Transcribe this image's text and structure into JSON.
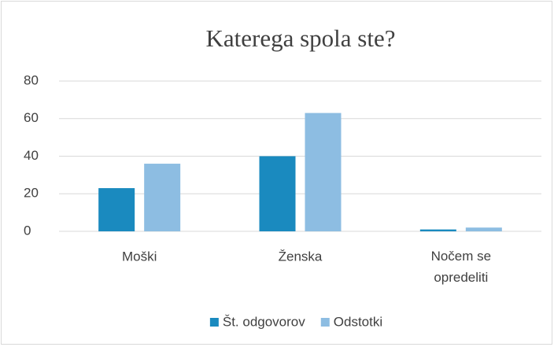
{
  "chart_data": {
    "type": "bar",
    "title": "Katerega spola ste?",
    "categories": [
      "Moški",
      "Ženska",
      "Nočem se opredeliti"
    ],
    "series": [
      {
        "name": "Št. odgovorov",
        "color": "#1a8abf",
        "values": [
          23,
          40,
          1
        ]
      },
      {
        "name": "Odstotki",
        "color": "#8dbde2",
        "values": [
          36,
          63,
          2
        ]
      }
    ],
    "ylim": [
      0,
      80
    ],
    "yticks": [
      0,
      20,
      40,
      60,
      80
    ],
    "grid": true,
    "legend": "bottom"
  }
}
